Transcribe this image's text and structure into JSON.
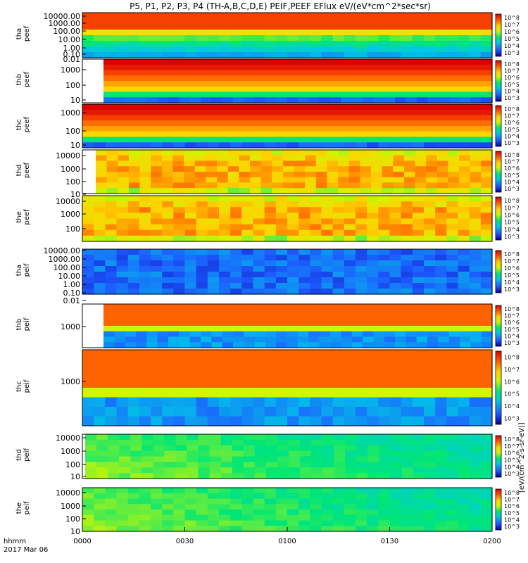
{
  "title": "P5, P1, P2, P3, P4 (TH-A,B,C,D,E) PEIF,PEEF EFlux eV/(eV*cm^2*sec*sr)",
  "colorbar_unit": "[eV/(cm^2-s-sr-eV)]",
  "time_axis": {
    "label_line1": "hhmm",
    "label_line2": "2017 Mar 06",
    "ticks": [
      "0000",
      "0030",
      "0100",
      "0130",
      "0200"
    ]
  },
  "colorbar_ticks": [
    "10^3",
    "10^4",
    "10^5",
    "10^6",
    "10^7",
    "10^8"
  ],
  "chart_data": {
    "type": "heatmap",
    "x_range": [
      "00:00",
      "02:00"
    ],
    "colorscale": "rainbow (blue=10^3 to red=10^8)",
    "panels": [
      {
        "id": "tha-peef",
        "label1": "tha",
        "label2": "peef",
        "yticks": [
          "10000.00",
          "1000.00",
          "100.00",
          "10.00",
          "1.00",
          "0.10",
          "0.01"
        ]
      },
      {
        "id": "thb-peef",
        "label1": "thb",
        "label2": "peef",
        "yticks": [
          "1000",
          "100",
          "10"
        ]
      },
      {
        "id": "thc-peef",
        "label1": "thc",
        "label2": "peef",
        "yticks": [
          "1000",
          "100",
          "10"
        ]
      },
      {
        "id": "thd-peef",
        "label1": "thd",
        "label2": "peef",
        "yticks": [
          "10000",
          "1000",
          "100",
          "10"
        ]
      },
      {
        "id": "the-peef",
        "label1": "the",
        "label2": "peef",
        "yticks": [
          "10000",
          "1000",
          "100"
        ]
      },
      {
        "id": "tha-peif",
        "label1": "tha",
        "label2": "peif",
        "yticks": [
          "10000.00",
          "1000.00",
          "100.00",
          "10.00",
          "1.00",
          "0.10",
          "0.01"
        ]
      },
      {
        "id": "thb-peif",
        "label1": "thb",
        "label2": "peif",
        "yticks": [
          "1000"
        ]
      },
      {
        "id": "thc-peif",
        "label1": "thc",
        "label2": "peif",
        "yticks": [
          "1000"
        ]
      },
      {
        "id": "thd-peif",
        "label1": "thd",
        "label2": "peif",
        "yticks": [
          "10000",
          "1000",
          "100",
          "10"
        ]
      },
      {
        "id": "the-peif",
        "label1": "the",
        "label2": "peif",
        "yticks": [
          "10000",
          "1000",
          "100",
          "10"
        ]
      }
    ]
  }
}
